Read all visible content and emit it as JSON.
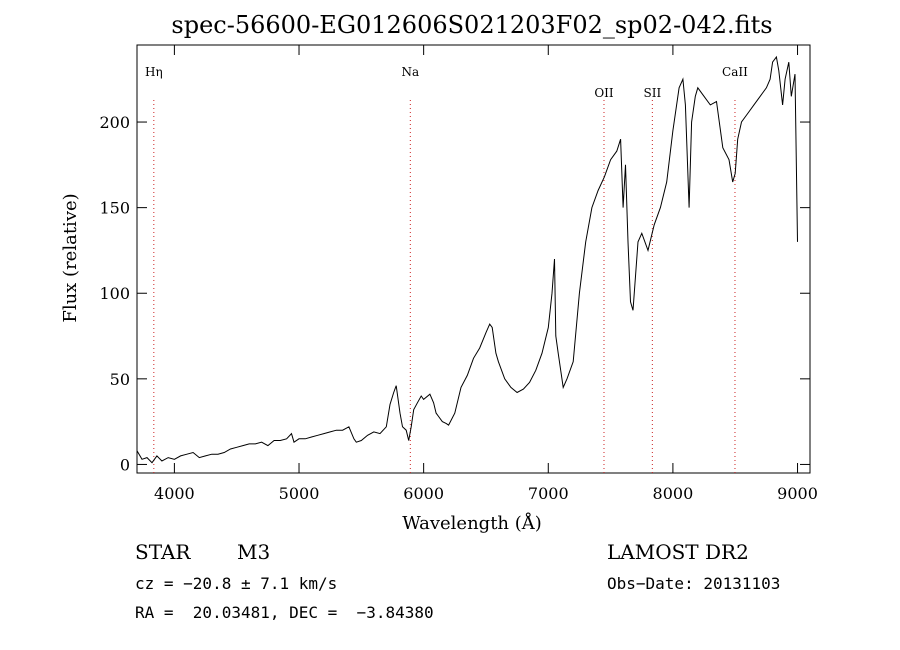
{
  "chart_data": {
    "type": "line",
    "title": "spec-56600-EG012606S021203F02_sp02-042.fits",
    "xlabel": "Wavelength (Å)",
    "ylabel": "Flux (relative)",
    "xlim": [
      3700,
      9100
    ],
    "ylim": [
      -5,
      245
    ],
    "x_ticks": [
      4000,
      5000,
      6000,
      7000,
      8000,
      9000
    ],
    "y_ticks": [
      0,
      50,
      100,
      150,
      200
    ],
    "grid": false,
    "line_color": "#000000",
    "series": [
      {
        "x": [
          3700,
          3740,
          3780,
          3820,
          3860,
          3900,
          3950,
          4000,
          4050,
          4100,
          4150,
          4200,
          4250,
          4300,
          4350,
          4400,
          4450,
          4500,
          4550,
          4600,
          4650,
          4700,
          4750,
          4800,
          4850,
          4900,
          4940,
          4960,
          5000,
          5050,
          5100,
          5150,
          5200,
          5250,
          5300,
          5350,
          5400,
          5440,
          5460,
          5500,
          5550,
          5600,
          5650,
          5700,
          5730,
          5760,
          5780,
          5810,
          5830,
          5860,
          5880,
          5900,
          5920,
          5950,
          5980,
          6000,
          6050,
          6080,
          6100,
          6120,
          6150,
          6180,
          6200,
          6250,
          6300,
          6350,
          6400,
          6450,
          6500,
          6530,
          6550,
          6580,
          6600,
          6650,
          6700,
          6750,
          6800,
          6850,
          6900,
          6950,
          7000,
          7030,
          7050,
          7060,
          7080,
          7100,
          7120,
          7150,
          7200,
          7250,
          7300,
          7350,
          7400,
          7450,
          7500,
          7550,
          7580,
          7600,
          7620,
          7640,
          7660,
          7680,
          7700,
          7720,
          7750,
          7800,
          7850,
          7900,
          7950,
          8000,
          8050,
          8080,
          8100,
          8130,
          8150,
          8180,
          8200,
          8250,
          8300,
          8350,
          8400,
          8450,
          8480,
          8500,
          8520,
          8550,
          8600,
          8650,
          8700,
          8750,
          8780,
          8800,
          8830,
          8850,
          8880,
          8900,
          8930,
          8950,
          8980,
          9000
        ],
        "y": [
          8,
          3,
          4,
          1,
          5,
          2,
          4,
          3,
          5,
          6,
          7,
          4,
          5,
          6,
          6,
          7,
          9,
          10,
          11,
          12,
          12,
          13,
          11,
          14,
          14,
          15,
          18,
          13,
          15,
          15,
          16,
          17,
          18,
          19,
          20,
          20,
          22,
          15,
          13,
          14,
          17,
          19,
          18,
          22,
          35,
          42,
          46,
          30,
          22,
          20,
          14,
          22,
          32,
          36,
          40,
          38,
          41,
          36,
          30,
          28,
          25,
          24,
          23,
          30,
          45,
          52,
          62,
          68,
          77,
          82,
          80,
          65,
          60,
          50,
          45,
          42,
          44,
          48,
          55,
          65,
          80,
          100,
          120,
          75,
          65,
          55,
          45,
          50,
          60,
          100,
          130,
          150,
          160,
          168,
          178,
          183,
          190,
          150,
          175,
          130,
          95,
          90,
          110,
          130,
          135,
          125,
          140,
          150,
          165,
          195,
          220,
          225,
          210,
          150,
          200,
          215,
          220,
          215,
          210,
          212,
          185,
          178,
          165,
          170,
          190,
          200,
          205,
          210,
          215,
          220,
          225,
          235,
          238,
          230,
          210,
          225,
          235,
          215,
          228,
          130
        ]
      }
    ],
    "lines": [
      {
        "label": "Hη",
        "x": 3835
      },
      {
        "label": "Na",
        "x": 5893
      },
      {
        "label": "OII",
        "x": 7447
      },
      {
        "label": "SII",
        "x": 7835
      },
      {
        "label": "CaII",
        "x": 8498
      }
    ]
  },
  "footer": {
    "class_label": "STAR",
    "subclass": "M3",
    "survey": "LAMOST DR2",
    "cz_text": "cz = −20.8 ± 7.1 km/s",
    "obs_date_text": "Obs−Date: 20131103",
    "radec_text": "RA =  20.03481, DEC =  −3.84380"
  }
}
